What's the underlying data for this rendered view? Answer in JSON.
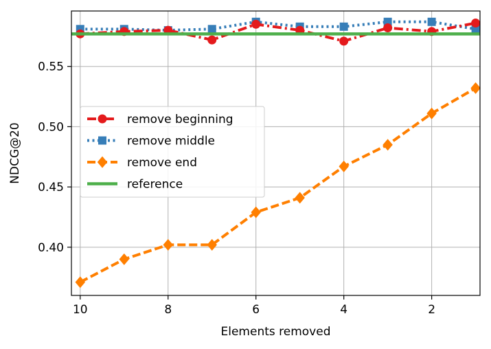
{
  "chart_data": {
    "type": "line",
    "xlabel": "Elements removed",
    "ylabel": "NDCG@20",
    "xlim": [
      10.2,
      0.9
    ],
    "ylim": [
      0.36,
      0.596
    ],
    "x_ticks": [
      10,
      8,
      6,
      4,
      2
    ],
    "y_ticks": [
      0.4,
      0.45,
      0.5,
      0.55
    ],
    "grid": true,
    "legend_position": "center-left",
    "series": [
      {
        "name": "remove beginning",
        "color": "#e41a1c",
        "line_style": "dashdot",
        "marker": "circle",
        "x": [
          10,
          9,
          8,
          7,
          6,
          5,
          4,
          3,
          2,
          1
        ],
        "y": [
          0.577,
          0.579,
          0.58,
          0.572,
          0.585,
          0.58,
          0.571,
          0.582,
          0.579,
          0.586
        ]
      },
      {
        "name": "remove middle",
        "color": "#377eb8",
        "line_style": "dotted",
        "marker": "square",
        "x": [
          10,
          9,
          8,
          7,
          6,
          5,
          4,
          3,
          2,
          1
        ],
        "y": [
          0.581,
          0.581,
          0.58,
          0.581,
          0.587,
          0.583,
          0.583,
          0.587,
          0.587,
          0.581
        ]
      },
      {
        "name": "remove end",
        "color": "#ff7f00",
        "line_style": "dashed",
        "marker": "diamond",
        "x": [
          10,
          9,
          8,
          7,
          6,
          5,
          4,
          3,
          2,
          1
        ],
        "y": [
          0.371,
          0.39,
          0.402,
          0.402,
          0.429,
          0.441,
          0.467,
          0.485,
          0.511,
          0.532
        ]
      },
      {
        "name": "reference",
        "color": "#4daf4a",
        "line_style": "solid",
        "marker": "none",
        "x": [
          10.2,
          0.9
        ],
        "y": [
          0.577,
          0.577
        ]
      }
    ]
  }
}
